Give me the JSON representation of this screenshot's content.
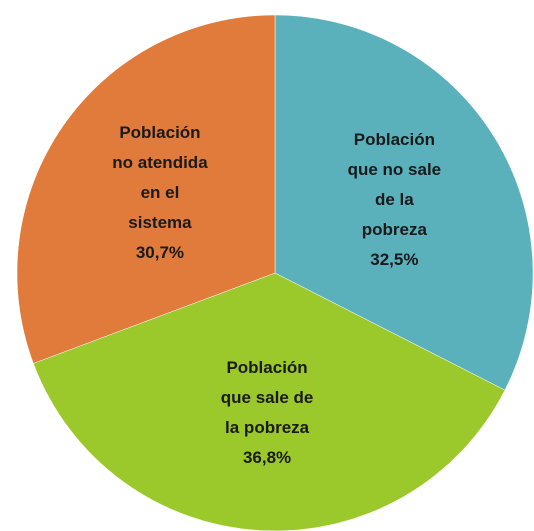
{
  "chart_data": {
    "type": "pie",
    "categories": [
      "Población\nque no sale\nde la\npobreza",
      "Población\nque sale de\nla pobreza",
      "Población\nno atendida\nen el\nsistema"
    ],
    "values": [
      32.5,
      36.8,
      30.7
    ],
    "value_labels": [
      "32,5%",
      "36,8%",
      "30,7%"
    ],
    "colors": [
      "#5bb1bb",
      "#9bc82a",
      "#e07b3c"
    ],
    "start_angle": 0,
    "direction": "clockwise"
  }
}
